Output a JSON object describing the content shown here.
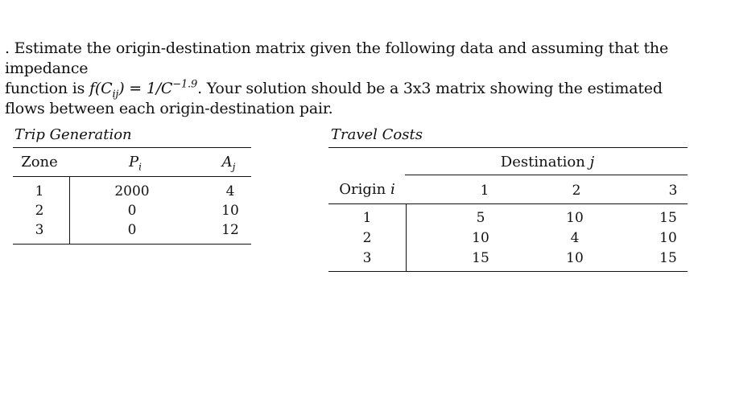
{
  "problem": {
    "line1": ". Estimate the origin-destination matrix given the following data and assuming that the impedance",
    "line2_prefix": "function is ",
    "line2_math": "f(C",
    "line2_math_sub": "ij",
    "line2_math_mid": ") = 1/C",
    "line2_math_sup": "−1.9",
    "line2_suffix": ". Your solution should be a 3x3 matrix showing the estimated",
    "line3": "flows between each origin-destination pair."
  },
  "trip_generation": {
    "title": "Trip Generation",
    "headers": [
      "Zone",
      "P",
      "A"
    ],
    "header_subs": [
      "",
      "i",
      "j"
    ],
    "rows": [
      [
        "1",
        "2000",
        "4"
      ],
      [
        "2",
        "0",
        "10"
      ],
      [
        "3",
        "0",
        "12"
      ]
    ]
  },
  "travel_costs": {
    "title": "Travel Costs",
    "group_header": "Destination",
    "group_header_var": "j",
    "row_header": "Origin",
    "row_header_var": "i",
    "col_headers": [
      "1",
      "2",
      "3"
    ],
    "rows": [
      {
        "origin": "1",
        "values": [
          "5",
          "10",
          "15"
        ]
      },
      {
        "origin": "2",
        "values": [
          "10",
          "4",
          "10"
        ]
      },
      {
        "origin": "3",
        "values": [
          "15",
          "10",
          "15"
        ]
      }
    ]
  }
}
